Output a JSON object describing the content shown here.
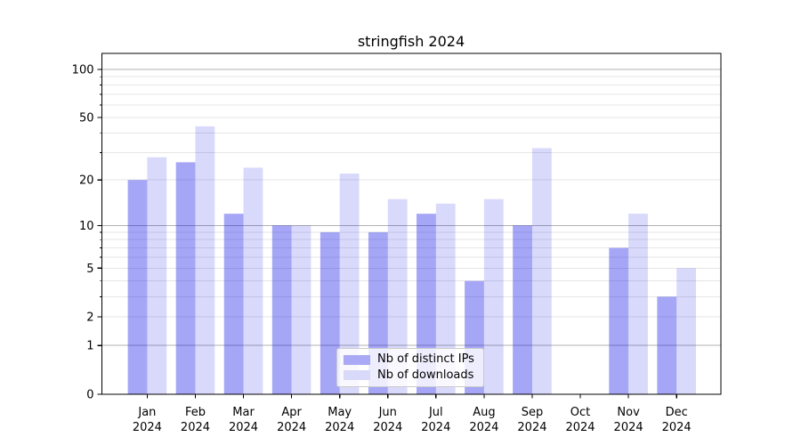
{
  "chart_data": {
    "type": "bar",
    "title": "stringfish 2024",
    "categories": [
      "Jan",
      "Feb",
      "Mar",
      "Apr",
      "May",
      "Jun",
      "Jul",
      "Aug",
      "Sep",
      "Oct",
      "Nov",
      "Dec"
    ],
    "category_line2": "2024",
    "series": [
      {
        "name": "Nb of distinct IPs",
        "color": "#0000e6",
        "fill_alpha": 0.35,
        "swatch_color": "#a9a9f5",
        "values": [
          20,
          26,
          12,
          10,
          9,
          9,
          12,
          4,
          10,
          0,
          7,
          3
        ]
      },
      {
        "name": "Nb of downloads",
        "color": "#0000e6",
        "fill_alpha": 0.15,
        "swatch_color": "#d9d9f9",
        "values": [
          28,
          44,
          24,
          10,
          22,
          15,
          14,
          15,
          32,
          0,
          12,
          5
        ]
      }
    ],
    "yscale": "log1p",
    "ylim": [
      0,
      121
    ],
    "y_ticks": [
      0,
      1,
      2,
      5,
      10,
      20,
      50,
      100
    ],
    "y_major_gridlines": [
      1,
      10,
      100
    ],
    "y_minor_gridlines": [
      2,
      3,
      4,
      5,
      6,
      7,
      8,
      9,
      20,
      30,
      40,
      50,
      60,
      70,
      80,
      90
    ],
    "grid": true,
    "legend_position": "lower center",
    "colors": {
      "major_grid": "#b2b2b2",
      "minor_grid": "#e6e6e6",
      "axis": "#000000",
      "text": "#000000"
    }
  }
}
